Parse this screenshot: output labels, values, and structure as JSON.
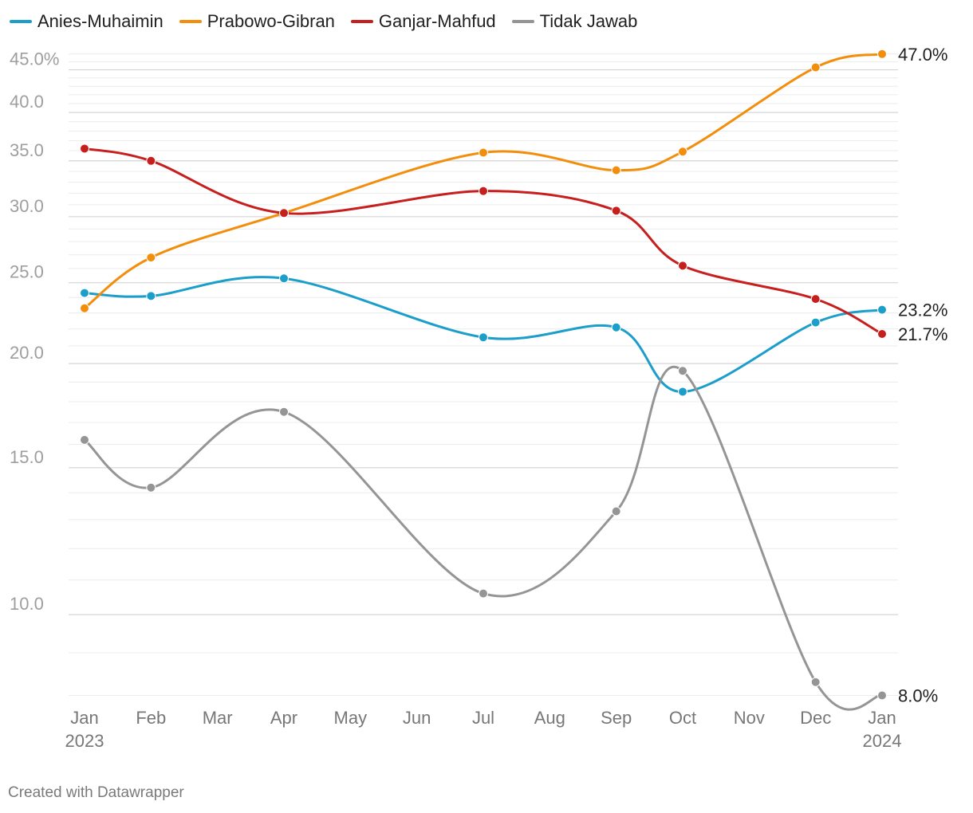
{
  "footer": {
    "credit": "Created with Datawrapper"
  },
  "chart_data": {
    "type": "line",
    "title": "",
    "xlabel": "",
    "ylabel": "",
    "y_scale": "log",
    "ylim": [
      7.8,
      47.5
    ],
    "grid": true,
    "legend_position": "top-left",
    "x_tick_labels": [
      {
        "month": 0,
        "label": "Jan",
        "sublabel": "2023"
      },
      {
        "month": 1,
        "label": "Feb",
        "sublabel": ""
      },
      {
        "month": 2,
        "label": "Mar",
        "sublabel": ""
      },
      {
        "month": 3,
        "label": "Apr",
        "sublabel": ""
      },
      {
        "month": 4,
        "label": "May",
        "sublabel": ""
      },
      {
        "month": 5,
        "label": "Jun",
        "sublabel": ""
      },
      {
        "month": 6,
        "label": "Jul",
        "sublabel": ""
      },
      {
        "month": 7,
        "label": "Aug",
        "sublabel": ""
      },
      {
        "month": 8,
        "label": "Sep",
        "sublabel": ""
      },
      {
        "month": 9,
        "label": "Oct",
        "sublabel": ""
      },
      {
        "month": 10,
        "label": "Nov",
        "sublabel": ""
      },
      {
        "month": 11,
        "label": "Dec",
        "sublabel": ""
      },
      {
        "month": 12,
        "label": "Jan",
        "sublabel": "2024"
      }
    ],
    "y_ticks": [
      {
        "value": 10,
        "label": "10.0"
      },
      {
        "value": 15,
        "label": "15.0"
      },
      {
        "value": 20,
        "label": "20.0"
      },
      {
        "value": 25,
        "label": "25.0"
      },
      {
        "value": 30,
        "label": "30.0"
      },
      {
        "value": 35,
        "label": "35.0"
      },
      {
        "value": 40,
        "label": "40.0"
      },
      {
        "value": 45,
        "label": "45.0%"
      }
    ],
    "series": [
      {
        "name": "Anies-Muhaimin",
        "color": "#1b9ec9",
        "x": [
          "2023-01",
          "2023-02",
          "2023-04",
          "2023-07",
          "2023-09",
          "2023-10",
          "2023-12",
          "2024-01"
        ],
        "values": [
          24.3,
          24.1,
          25.3,
          21.5,
          22.1,
          18.5,
          22.4,
          23.2
        ],
        "end_label": "23.2%"
      },
      {
        "name": "Prabowo-Gibran",
        "color": "#f28e0c",
        "x": [
          "2023-01",
          "2023-02",
          "2023-04",
          "2023-07",
          "2023-09",
          "2023-10",
          "2023-12",
          "2024-01"
        ],
        "values": [
          23.3,
          26.8,
          30.3,
          35.8,
          34.1,
          35.9,
          45.3,
          47.0
        ],
        "end_label": "47.0%"
      },
      {
        "name": "Ganjar-Mahfud",
        "color": "#c71e1e",
        "x": [
          "2023-01",
          "2023-02",
          "2023-04",
          "2023-07",
          "2023-09",
          "2023-10",
          "2023-12",
          "2024-01"
        ],
        "values": [
          36.2,
          35.0,
          30.3,
          32.2,
          30.5,
          26.2,
          23.9,
          21.7
        ],
        "end_label": "21.7%"
      },
      {
        "name": "Tidak Jawab",
        "color": "#959595",
        "x": [
          "2023-01",
          "2023-02",
          "2023-04",
          "2023-07",
          "2023-09",
          "2023-10",
          "2023-12",
          "2024-01"
        ],
        "values": [
          16.2,
          14.2,
          17.5,
          10.6,
          13.3,
          19.6,
          8.3,
          8.0
        ],
        "end_label": "8.0%"
      }
    ]
  }
}
